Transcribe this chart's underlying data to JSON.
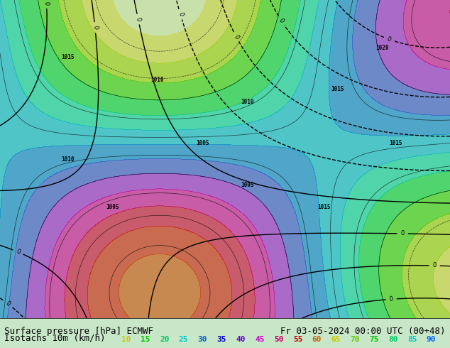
{
  "title_line1": "Surface pressure [hPa] ECMWF",
  "title_line2": "Fr 03-05-2024 00:00 UTC (00+48)",
  "legend_label": "Isotachs 10m (km/h)",
  "legend_values": [
    10,
    15,
    20,
    25,
    30,
    35,
    40,
    45,
    50,
    55,
    60,
    65,
    70,
    75,
    80,
    85,
    90
  ],
  "legend_colors": [
    "#c8c800",
    "#00c800",
    "#00c864",
    "#00c8c8",
    "#0064c8",
    "#0000c8",
    "#6400c8",
    "#c800c8",
    "#c80064",
    "#c80000",
    "#c86400",
    "#c8c800",
    "#64c800",
    "#00c800",
    "#00c864",
    "#00c8c8",
    "#0064ff"
  ],
  "bg_color": "#c8e6c8",
  "map_bg": "#c8e6c8",
  "bottom_bar_color": "#e8e8e8",
  "font_color_label": "#000000",
  "font_size_label": 9,
  "font_size_legend": 8,
  "fig_width": 6.34,
  "fig_height": 4.9,
  "dpi": 100
}
